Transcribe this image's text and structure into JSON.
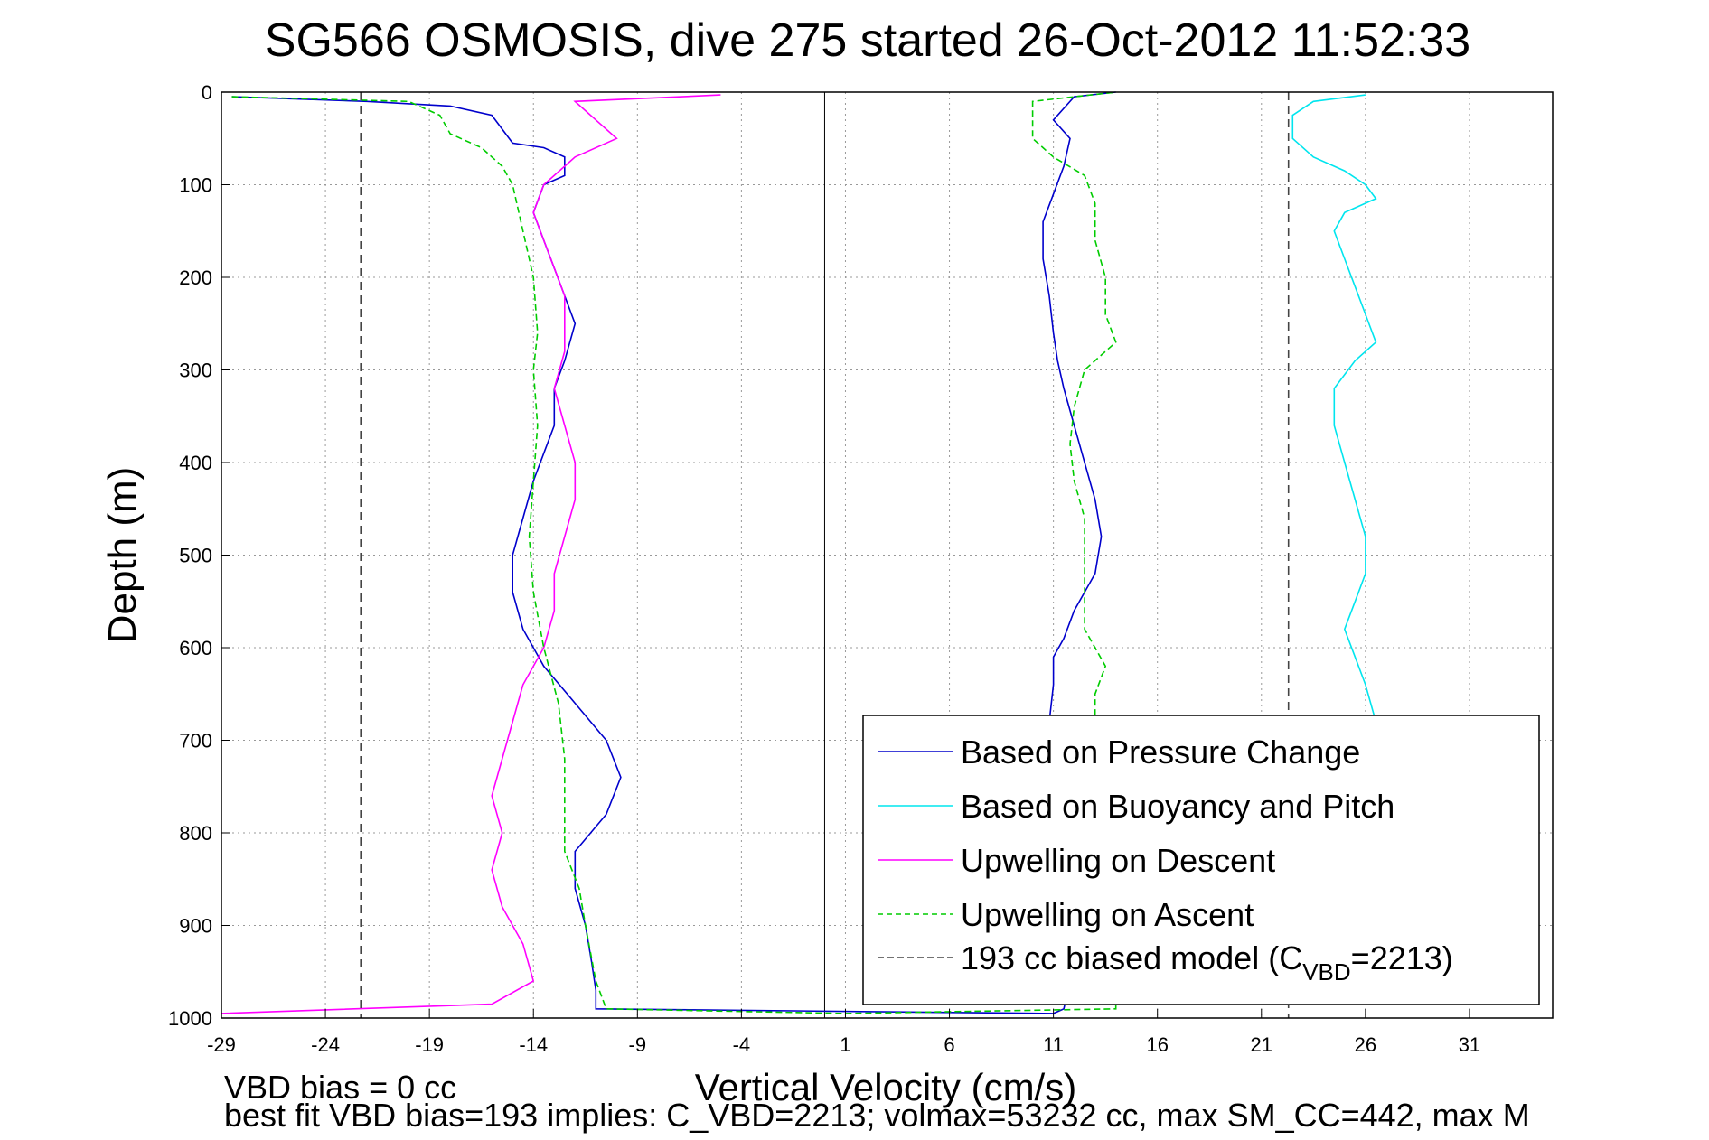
{
  "chart_data": {
    "type": "line",
    "title": "SG566 OSMOSIS, dive 275 started 26-Oct-2012 11:52:33",
    "xlabel": "Vertical Velocity (cm/s)",
    "ylabel": "Depth (m)",
    "xlim": [
      -29,
      35
    ],
    "ylim": [
      0,
      1000
    ],
    "y_reversed": true,
    "xticks": [
      -29,
      -24,
      -19,
      -14,
      -9,
      -4,
      1,
      6,
      11,
      16,
      21,
      26,
      31
    ],
    "yticks": [
      0,
      100,
      200,
      300,
      400,
      500,
      600,
      700,
      800,
      900,
      1000
    ],
    "grid": true,
    "legend_position": "bottom-right",
    "zero_line_x": 0,
    "series": [
      {
        "name": "Based on Pressure Change",
        "color": "#0000cc",
        "style": "solid",
        "points": [
          [
            -28.5,
            5
          ],
          [
            -22,
            10
          ],
          [
            -18,
            15
          ],
          [
            -16,
            25
          ],
          [
            -15.5,
            40
          ],
          [
            -15,
            55
          ],
          [
            -13.5,
            60
          ],
          [
            -12.5,
            70
          ],
          [
            -12.5,
            90
          ],
          [
            -13.5,
            100
          ],
          [
            -14,
            130
          ],
          [
            -13.5,
            160
          ],
          [
            -13,
            190
          ],
          [
            -12.5,
            220
          ],
          [
            -12,
            250
          ],
          [
            -12.5,
            290
          ],
          [
            -13,
            320
          ],
          [
            -13,
            360
          ],
          [
            -13.5,
            390
          ],
          [
            -14,
            420
          ],
          [
            -14.5,
            460
          ],
          [
            -15,
            500
          ],
          [
            -15,
            540
          ],
          [
            -14.5,
            580
          ],
          [
            -13.5,
            620
          ],
          [
            -12,
            660
          ],
          [
            -10.5,
            700
          ],
          [
            -9.8,
            740
          ],
          [
            -10.5,
            780
          ],
          [
            -12,
            820
          ],
          [
            -12,
            860
          ],
          [
            -11.5,
            900
          ],
          [
            -11.2,
            940
          ],
          [
            -11,
            970
          ],
          [
            -11,
            990
          ],
          [
            11,
            995
          ],
          [
            11.5,
            990
          ],
          [
            11.8,
            960
          ],
          [
            11.7,
            920
          ],
          [
            11.5,
            880
          ],
          [
            11.6,
            840
          ],
          [
            11.2,
            800
          ],
          [
            11,
            760
          ],
          [
            10.8,
            720
          ],
          [
            10.8,
            680
          ],
          [
            11,
            640
          ],
          [
            11,
            610
          ],
          [
            11.5,
            590
          ],
          [
            12,
            560
          ],
          [
            13,
            520
          ],
          [
            13.3,
            480
          ],
          [
            13,
            440
          ],
          [
            12.5,
            400
          ],
          [
            12,
            360
          ],
          [
            11.5,
            320
          ],
          [
            11.2,
            290
          ],
          [
            11,
            260
          ],
          [
            10.8,
            220
          ],
          [
            10.5,
            180
          ],
          [
            10.5,
            140
          ],
          [
            11,
            110
          ],
          [
            11.5,
            80
          ],
          [
            11.8,
            50
          ],
          [
            11,
            30
          ],
          [
            12,
            5
          ],
          [
            14,
            0
          ]
        ]
      },
      {
        "name": "Based on Buoyancy and Pitch",
        "color": "#00e5ee",
        "style": "solid",
        "points": [
          [
            26,
            3
          ],
          [
            23.5,
            10
          ],
          [
            22.5,
            25
          ],
          [
            22.5,
            50
          ],
          [
            23.5,
            70
          ],
          [
            25,
            85
          ],
          [
            26,
            100
          ],
          [
            26.5,
            115
          ],
          [
            25,
            130
          ],
          [
            24.5,
            150
          ],
          [
            25,
            180
          ],
          [
            25.5,
            210
          ],
          [
            26,
            240
          ],
          [
            26.5,
            270
          ],
          [
            25.5,
            290
          ],
          [
            24.5,
            320
          ],
          [
            24.5,
            360
          ],
          [
            25,
            400
          ],
          [
            25.5,
            440
          ],
          [
            26,
            480
          ],
          [
            26,
            520
          ],
          [
            25.5,
            550
          ],
          [
            25,
            580
          ],
          [
            25.5,
            610
          ],
          [
            26,
            640
          ],
          [
            26.5,
            680
          ]
        ]
      },
      {
        "name": "Upwelling on Descent",
        "color": "#ff00ff",
        "style": "solid",
        "points": [
          [
            -5,
            3
          ],
          [
            -12,
            10
          ],
          [
            -11,
            30
          ],
          [
            -10,
            50
          ],
          [
            -12,
            70
          ],
          [
            -13.5,
            100
          ],
          [
            -14,
            130
          ],
          [
            -13.5,
            160
          ],
          [
            -13,
            190
          ],
          [
            -12.5,
            220
          ],
          [
            -12.5,
            250
          ],
          [
            -12.5,
            280
          ],
          [
            -13,
            320
          ],
          [
            -12.5,
            360
          ],
          [
            -12,
            400
          ],
          [
            -12,
            440
          ],
          [
            -12.5,
            480
          ],
          [
            -13,
            520
          ],
          [
            -13,
            560
          ],
          [
            -13.5,
            600
          ],
          [
            -14.5,
            640
          ],
          [
            -15,
            680
          ],
          [
            -15.5,
            720
          ],
          [
            -16,
            760
          ],
          [
            -15.5,
            800
          ],
          [
            -16,
            840
          ],
          [
            -15.5,
            880
          ],
          [
            -14.5,
            920
          ],
          [
            -14,
            960
          ],
          [
            -16,
            985
          ],
          [
            -29,
            995
          ]
        ]
      },
      {
        "name": "Upwelling on Ascent",
        "color": "#00cc00",
        "style": "dashed",
        "points": [
          [
            -28.5,
            5
          ],
          [
            -20,
            10
          ],
          [
            -18.5,
            25
          ],
          [
            -18,
            45
          ],
          [
            -16.5,
            60
          ],
          [
            -15.5,
            80
          ],
          [
            -15,
            100
          ],
          [
            -14.5,
            150
          ],
          [
            -14,
            200
          ],
          [
            -13.8,
            260
          ],
          [
            -14,
            300
          ],
          [
            -13.8,
            360
          ],
          [
            -14,
            420
          ],
          [
            -14.2,
            480
          ],
          [
            -14,
            540
          ],
          [
            -13.5,
            600
          ],
          [
            -12.8,
            660
          ],
          [
            -12.5,
            720
          ],
          [
            -12.5,
            780
          ],
          [
            -12.5,
            820
          ],
          [
            -11.8,
            860
          ],
          [
            -11.5,
            900
          ],
          [
            -11,
            960
          ],
          [
            -10.5,
            990
          ],
          [
            1,
            995
          ],
          [
            14,
            990
          ],
          [
            14,
            950
          ],
          [
            13.5,
            900
          ],
          [
            13,
            850
          ],
          [
            13,
            800
          ],
          [
            12.8,
            750
          ],
          [
            13,
            700
          ],
          [
            13,
            650
          ],
          [
            13.5,
            620
          ],
          [
            12.5,
            580
          ],
          [
            12.5,
            540
          ],
          [
            12.5,
            500
          ],
          [
            12.5,
            460
          ],
          [
            12,
            420
          ],
          [
            11.8,
            380
          ],
          [
            12,
            340
          ],
          [
            12.5,
            300
          ],
          [
            14,
            270
          ],
          [
            13.5,
            240
          ],
          [
            13.5,
            200
          ],
          [
            13,
            160
          ],
          [
            13,
            120
          ],
          [
            12.5,
            90
          ],
          [
            11,
            70
          ],
          [
            10,
            50
          ],
          [
            10,
            30
          ],
          [
            10,
            10
          ],
          [
            14,
            0
          ]
        ]
      },
      {
        "name": "193 cc biased model (C_VBD=2213)",
        "color": "#444444",
        "style": "dashed",
        "points": [
          [
            -22.3,
            0
          ],
          [
            -22.3,
            1000
          ]
        ]
      },
      {
        "name": "193 cc biased model (C_VBD=2213) ascent",
        "color": "#444444",
        "style": "dashed",
        "points": [
          [
            22.3,
            0
          ],
          [
            22.3,
            1000
          ]
        ]
      }
    ],
    "legend": {
      "entries": [
        {
          "label": "Based on Pressure Change",
          "color": "#0000cc",
          "style": "solid"
        },
        {
          "label": "Based on Buoyancy and Pitch",
          "color": "#00e5ee",
          "style": "solid"
        },
        {
          "label": "Upwelling on Descent",
          "color": "#ff00ff",
          "style": "solid"
        },
        {
          "label": "Upwelling on Ascent",
          "color": "#00cc00",
          "style": "dashed"
        },
        {
          "label_main": "193 cc biased model (C",
          "label_sub": "VBD",
          "label_tail": "=2213)",
          "color": "#444444",
          "style": "dashed"
        }
      ]
    },
    "annotations": [
      "VBD bias = 0 cc",
      "best fit VBD bias=193 implies: C_VBD=2213; volmax=53232 cc, max SM_CC=442, max M"
    ]
  }
}
